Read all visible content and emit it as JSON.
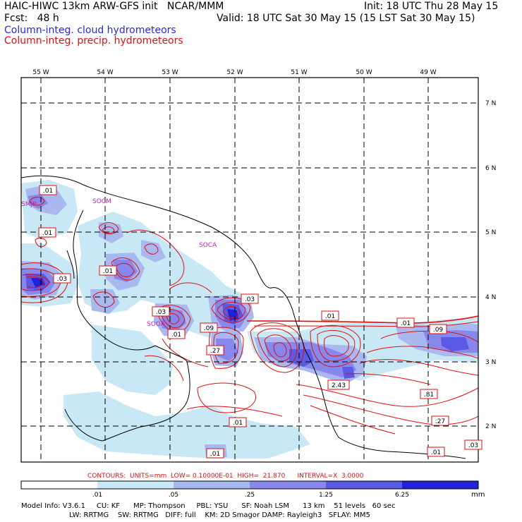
{
  "header": {
    "title": "HAIC-HIWC 13km ARW-GFS init   NCAR/MMM",
    "init": "Init: 18 UTC Thu 28 May 15",
    "fcst": "Fcst:   48 h",
    "valid": "Valid: 18 UTC Sat 30 May 15 (15 LST Sat 30 May 15)",
    "cloud_label": "Column-integ. cloud hydrometeors",
    "precip_label": "Column-integ. precip. hydrometeors"
  },
  "map": {
    "lon_labels": [
      "55 W",
      "54 W",
      "53 W",
      "52 W",
      "51 W",
      "50 W",
      "49 W"
    ],
    "lat_labels": [
      "7 N",
      "6 N",
      "5 N",
      "4 N",
      "3 N",
      "2 N"
    ],
    "stations": [
      "SMJP",
      "SOCM",
      "SOCA",
      "SOOA"
    ],
    "contour_labels": [
      ".01",
      ".01",
      ".01",
      ".03",
      ".03",
      ".03",
      ".01",
      ".09",
      ".27",
      ".01",
      ".01",
      ".09",
      "2.43",
      ".81",
      ".27",
      ".01",
      ".03",
      ".01",
      ".01"
    ]
  },
  "contours_info": "CONTOURS:  UNITS=mm  LOW= 0.10000E-01  HIGH=  21.870      INTERVAL=X  3.0000",
  "colorbar": {
    "ticks": [
      ".01",
      ".05",
      ".25",
      "1.25",
      "6.25"
    ],
    "unit": "mm",
    "colors": [
      "#ffffff",
      "#c9e8f6",
      "#aab8f0",
      "#8888ec",
      "#5a5ae6",
      "#2222dd"
    ]
  },
  "footer": {
    "line1": "Model Info: V3.6.1     CU: KF      MP: Thompson     PBL: YSU      SF: Noah LSM      13 km    51 levels   60 sec",
    "line2": "LW: RRTMG    SW: RRTMG   DIFF: full    KM: 2D Smagor DAMP: Rayleigh3   SFLAY: MM5"
  }
}
